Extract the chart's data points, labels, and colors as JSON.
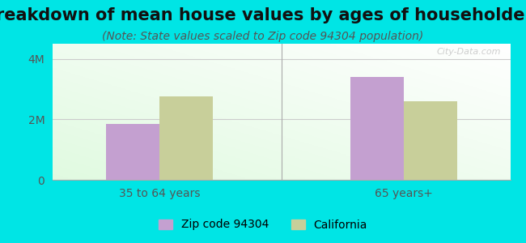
{
  "title": "Breakdown of mean house values by ages of householders",
  "subtitle": "(Note: State values scaled to Zip code 94304 population)",
  "categories": [
    "35 to 64 years",
    "65 years+"
  ],
  "zip_values": [
    1850000,
    3400000
  ],
  "ca_values": [
    2750000,
    2600000
  ],
  "ylim": [
    0,
    4500000
  ],
  "ytick_labels": [
    "0",
    "2M",
    "4M"
  ],
  "ytick_vals": [
    0,
    2000000,
    4000000
  ],
  "zip_color": "#c4a0d0",
  "ca_color": "#c8cf9a",
  "legend_zip": "Zip code 94304",
  "legend_ca": "California",
  "bg_color": "#00e5e5",
  "title_fontsize": 15,
  "subtitle_fontsize": 10,
  "watermark": "City-Data.com",
  "bar_width": 0.35
}
